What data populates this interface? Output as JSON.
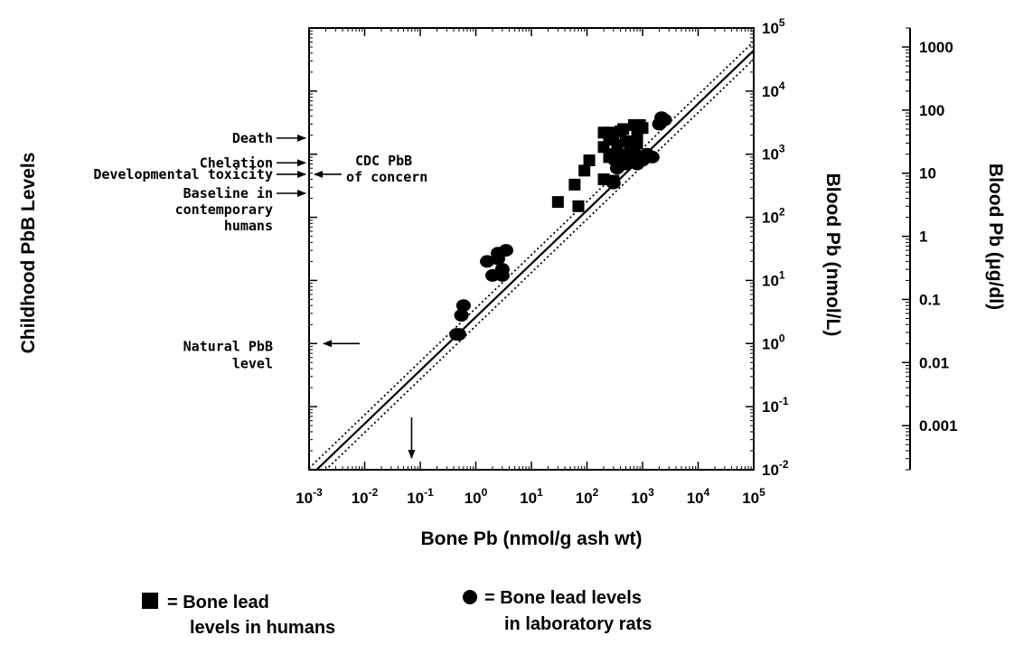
{
  "chart_data": {
    "type": "scatter",
    "x_scale": "log",
    "y_scale": "log",
    "xlim": [
      0.001,
      100000
    ],
    "ylim_left_right_nmol": [
      0.01,
      100000
    ],
    "ylim_ug_dl": [
      0.0002,
      2000
    ],
    "x_tick_labels": [
      "10",
      "10",
      "10",
      "10",
      "10",
      "10",
      "10",
      "10",
      "10"
    ],
    "x_tick_exponents": [
      "-3",
      "-2",
      "-1",
      "0",
      "1",
      "2",
      "3",
      "4",
      "5"
    ],
    "x_tick_values": [
      0.001,
      0.01,
      0.1,
      1,
      10,
      100,
      1000,
      10000,
      100000
    ],
    "y_right_tick_labels": [
      "10",
      "10",
      "10",
      "10",
      "10",
      "10",
      "10",
      "10"
    ],
    "y_right_tick_exponents": [
      "5",
      "4",
      "3",
      "2",
      "1",
      "0",
      "-1",
      "-2"
    ],
    "y_right_tick_values": [
      100000,
      10000,
      1000,
      100,
      10,
      1,
      0.1,
      0.01
    ],
    "y_far_tick_labels": [
      "1000",
      "100",
      "10",
      "1",
      "0.1",
      "0.01",
      "0.001"
    ],
    "y_far_tick_values": [
      1000,
      100,
      10,
      1,
      0.1,
      0.01,
      0.001
    ],
    "xlabel": "Bone Pb (nmol/g ash wt)",
    "ylabel_left": "Childhood PbB Levels",
    "ylabel_right": "Blood Pb (nmol/L)",
    "ylabel_far": "Blood Pb (μg/dl)",
    "annotations": [
      {
        "text": "Death",
        "y_nmol": 1800,
        "side": "left"
      },
      {
        "text": "Chelation",
        "y_nmol": 730,
        "side": "left"
      },
      {
        "text": "Developmental toxicity",
        "y_nmol": 480,
        "side": "left"
      },
      {
        "text": "Baseline in",
        "y_nmol": 240,
        "side": "left"
      },
      {
        "text": "contemporary",
        "y_nmol": 240,
        "side": "left"
      },
      {
        "text": "humans",
        "y_nmol": 240,
        "side": "left"
      },
      {
        "text": "CDC PbB",
        "y_nmol": 480,
        "side": "right"
      },
      {
        "text": "of concern",
        "y_nmol": 480,
        "side": "right"
      },
      {
        "text": "Natural PbB",
        "y_nmol": 1,
        "side": "left"
      },
      {
        "text": "level",
        "y_nmol": 1,
        "side": "left"
      }
    ],
    "down_arrow_x": 0.07,
    "regression": {
      "intercept_log10": 0.42,
      "slope": 0.845
    },
    "confidence_offset_log10": 0.14,
    "series": [
      {
        "name": "Bone lead levels in humans",
        "marker": "square",
        "points": [
          [
            30,
            175
          ],
          [
            70,
            150
          ],
          [
            60,
            330
          ],
          [
            90,
            550
          ],
          [
            110,
            800
          ],
          [
            200,
            2200
          ],
          [
            250,
            2200
          ],
          [
            300,
            1700
          ],
          [
            400,
            2300
          ],
          [
            450,
            2500
          ],
          [
            700,
            2900
          ],
          [
            900,
            2900
          ],
          [
            300,
            1000
          ],
          [
            250,
            900
          ],
          [
            200,
            1300
          ],
          [
            350,
            1400
          ],
          [
            500,
            1600
          ],
          [
            600,
            1200
          ],
          [
            700,
            1000
          ],
          [
            800,
            1500
          ],
          [
            200,
            400
          ],
          [
            300,
            380
          ],
          [
            250,
            1900
          ],
          [
            800,
            2000
          ],
          [
            1000,
            2600
          ],
          [
            450,
            700
          ]
        ]
      },
      {
        "name": "Bone lead levels in laboratory rats",
        "marker": "circle",
        "points": [
          [
            0.45,
            1.4
          ],
          [
            0.5,
            1.4
          ],
          [
            0.55,
            2.8
          ],
          [
            0.6,
            4.0
          ],
          [
            1.6,
            20
          ],
          [
            2.0,
            12
          ],
          [
            2.5,
            27
          ],
          [
            3.0,
            15
          ],
          [
            3.5,
            30
          ],
          [
            2.5,
            22
          ],
          [
            3.0,
            12
          ],
          [
            300,
            350
          ],
          [
            320,
            800
          ],
          [
            350,
            600
          ],
          [
            400,
            1000
          ],
          [
            500,
            700
          ],
          [
            600,
            900
          ],
          [
            700,
            1100
          ],
          [
            800,
            700
          ],
          [
            1000,
            800
          ],
          [
            1200,
            1000
          ],
          [
            1500,
            900
          ],
          [
            2000,
            3000
          ],
          [
            2200,
            3800
          ],
          [
            2500,
            3500
          ],
          [
            600,
            1400
          ]
        ]
      }
    ],
    "legend": {
      "placement": "bottom",
      "human_line1": "= Bone lead",
      "human_line2": "levels in humans",
      "rat_line1": "= Bone lead levels",
      "rat_line2": "in laboratory rats"
    }
  }
}
